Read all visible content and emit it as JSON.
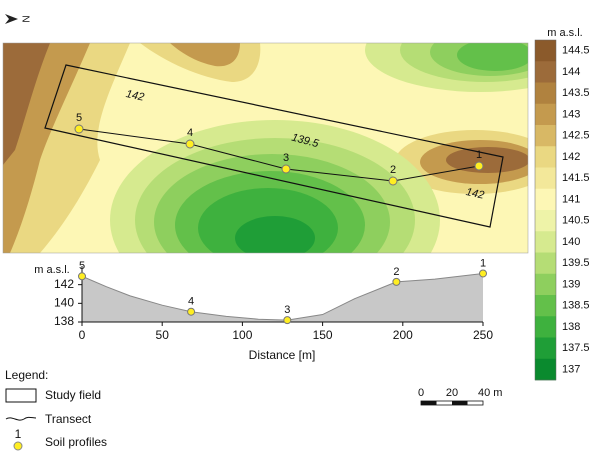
{
  "north_label": "N",
  "colorbar": {
    "title": "m a.s.l.",
    "ticks": [
      144.5,
      144,
      143.5,
      143,
      142.5,
      142,
      141.5,
      141,
      140.5,
      140,
      139.5,
      139,
      138.5,
      138,
      137.5,
      137
    ],
    "colors": [
      "#8b5a2b",
      "#9c6b3a",
      "#b0823f",
      "#c49a4e",
      "#d8b865",
      "#ead882",
      "#f3e89a",
      "#fdf7b5",
      "#eef3a8",
      "#d6ea8f",
      "#b5dd75",
      "#8ecf5e",
      "#63c04a",
      "#3eb13e",
      "#1f9e37",
      "#0a8a2e"
    ]
  },
  "map": {
    "contour_labels": [
      "142",
      "139.5",
      "142"
    ],
    "profile_labels": [
      "5",
      "4",
      "3",
      "2",
      "1"
    ]
  },
  "chart_data": {
    "type": "area",
    "y_label": "m a.s.l.",
    "x_label": "Distance [m]",
    "x": [
      0,
      15,
      30,
      50,
      68,
      90,
      110,
      128,
      150,
      170,
      196,
      220,
      250
    ],
    "values": [
      142.9,
      141.8,
      140.8,
      139.8,
      139.1,
      138.6,
      138.3,
      138.2,
      138.8,
      140.5,
      142.3,
      142.6,
      143.2
    ],
    "color": "#c8c8c8",
    "xlim": [
      0,
      250
    ],
    "xticks": [
      0,
      50,
      100,
      150,
      200,
      250
    ],
    "ylim": [
      138,
      144
    ],
    "yticks": [
      138,
      140,
      142
    ],
    "points": {
      "labels": [
        "5",
        "4",
        "3",
        "2",
        "1"
      ],
      "x": [
        0,
        68,
        128,
        196,
        250
      ],
      "values": [
        142.9,
        139.1,
        138.2,
        142.3,
        143.2
      ],
      "color": "#ffee22"
    }
  },
  "legend": {
    "title": "Legend:",
    "items": [
      "Study field",
      "Transect",
      "Soil profiles"
    ],
    "symbol_label": "1"
  },
  "scale_bar": {
    "ticks": [
      0,
      20,
      {
        "value": 40,
        "label": "40 m"
      }
    ]
  }
}
